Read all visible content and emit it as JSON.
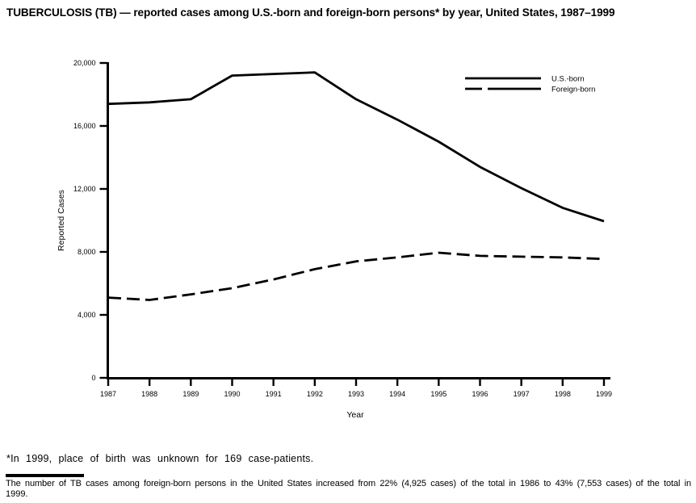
{
  "title": "TUBERCULOSIS (TB) — reported cases among U.S.-born and foreign-born persons* by year, United States, 1987–1999",
  "footnote": "*In 1999, place of birth was unknown for 169 case-patients.",
  "caption_line1": "The number of TB cases among foreign-born persons in the United States increased from 22% (4,925 cases) of the total in 1986 to 43% (7,553 cases) of the total in",
  "caption_line2": "1999.",
  "colors": {
    "ink": "#000000",
    "background": "#ffffff"
  },
  "chart_data": {
    "type": "line",
    "x": [
      1987,
      1988,
      1989,
      1990,
      1991,
      1992,
      1993,
      1994,
      1995,
      1996,
      1997,
      1998,
      1999
    ],
    "series": [
      {
        "name": "U.S.-born",
        "line_style": "solid",
        "values": [
          17400,
          17500,
          17700,
          19200,
          19300,
          19400,
          17700,
          16400,
          15000,
          13400,
          12050,
          10800,
          9950
        ]
      },
      {
        "name": "Foreign-born",
        "line_style": "dashed",
        "values": [
          5100,
          4950,
          5300,
          5700,
          6250,
          6900,
          7400,
          7650,
          7950,
          7750,
          7700,
          7650,
          7550
        ]
      }
    ],
    "xlabel": "Year",
    "ylabel": "Reported Cases",
    "ylim": [
      0,
      20000
    ],
    "yticks": [
      0,
      4000,
      8000,
      12000,
      16000,
      20000
    ],
    "ytick_labels": [
      "0",
      "4,000",
      "8,000",
      "12,000",
      "16,000",
      "20,000"
    ],
    "xtick_labels": [
      "1987",
      "1988",
      "1989",
      "1990",
      "1991",
      "1992",
      "1993",
      "1994",
      "1995",
      "1996",
      "1997",
      "1998",
      "1999"
    ],
    "legend_position": "top-right",
    "grid": false
  }
}
